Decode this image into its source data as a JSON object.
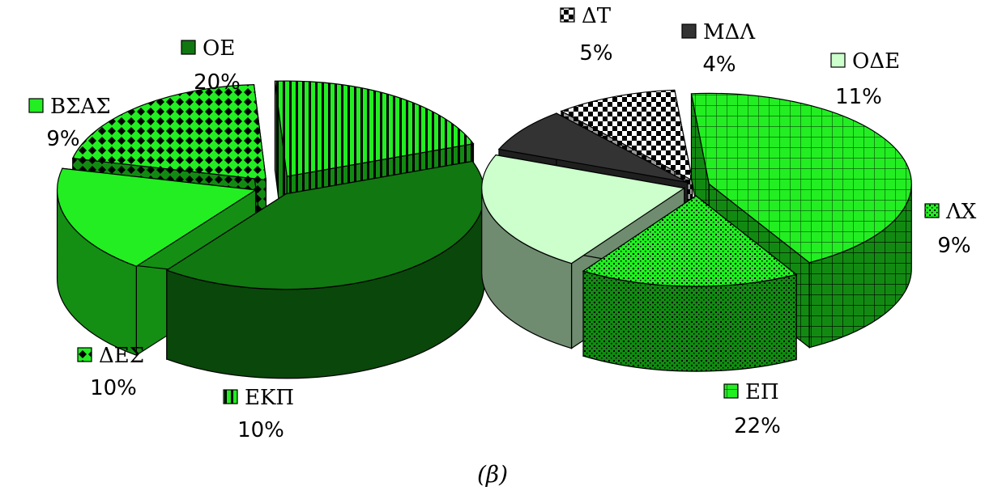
{
  "caption": "(β)",
  "chart_data": {
    "type": "pie",
    "title": "",
    "slices": [
      {
        "label": "ΟΕ",
        "value": 20,
        "value_label": "20%",
        "color": "#117711",
        "pattern": "solid"
      },
      {
        "label": "ΒΣΑΣ",
        "value": 9,
        "value_label": "9%",
        "color": "#22ee22",
        "pattern": "solid"
      },
      {
        "label": "ΔΕΣ",
        "value": 10,
        "value_label": "10%",
        "color": "#22ee22",
        "pattern": "diamonds"
      },
      {
        "label": "ΕΚΠ",
        "value": 10,
        "value_label": "10%",
        "color": "#22ee22",
        "pattern": "vertical-stripes"
      },
      {
        "label": "ΕΠ",
        "value": 22,
        "value_label": "22%",
        "color": "#22ee22",
        "pattern": "grid"
      },
      {
        "label": "ΛΧ",
        "value": 9,
        "value_label": "9%",
        "color": "#22ee22",
        "pattern": "dots"
      },
      {
        "label": "ΟΔΕ",
        "value": 11,
        "value_label": "11%",
        "color": "#ccffcc",
        "pattern": "solid"
      },
      {
        "label": "ΜΔΛ",
        "value": 4,
        "value_label": "4%",
        "color": "#333333",
        "pattern": "solid"
      },
      {
        "label": "ΔΤ",
        "value": 5,
        "value_label": "5%",
        "color": "#000000",
        "pattern": "checker"
      }
    ]
  }
}
